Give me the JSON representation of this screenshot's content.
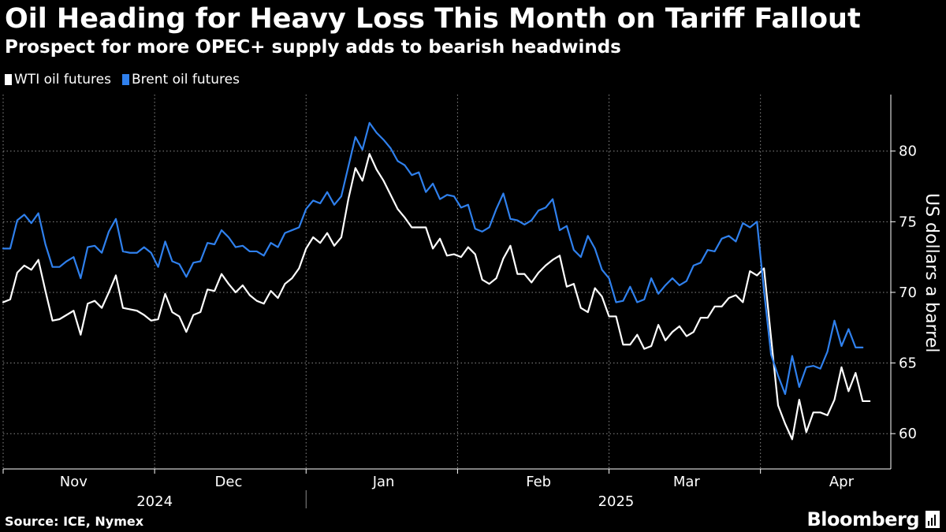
{
  "colors": {
    "background": "#000000",
    "wti": "#ffffff",
    "brent": "#2f80ed",
    "grid": "#8a8a8a"
  },
  "brand": {
    "name": "Bloomberg",
    "icon": "bloomberg-chart-icon"
  },
  "source": "Source: ICE, Nymex",
  "chart_data": {
    "type": "line",
    "title": "Oil Heading for Heavy Loss This Month on Tariff Fallout",
    "subtitle": "Prospect for more OPEC+ supply adds to bearish headwinds",
    "ylabel": "US dollars a barrel",
    "xlabel": "",
    "ylim": [
      57.5,
      84
    ],
    "yticks": [
      60,
      65,
      70,
      75,
      80
    ],
    "xlim": [
      0,
      126
    ],
    "month_ticks": [
      {
        "label": "Nov",
        "x": 10
      },
      {
        "label": "Dec",
        "x": 32
      },
      {
        "label": "Jan",
        "x": 54
      },
      {
        "label": "Feb",
        "x": 76
      },
      {
        "label": "Mar",
        "x": 97
      },
      {
        "label": "Apr",
        "x": 119
      }
    ],
    "month_boundaries": [
      0,
      21.5,
      43,
      64.5,
      86,
      107.5
    ],
    "year_labels": [
      {
        "label": "2024",
        "x": 21.5
      },
      {
        "label": "2025",
        "x": 87
      }
    ],
    "year_divider": 43,
    "grid": true,
    "legend": "top-left",
    "series": [
      {
        "name": "WTI oil futures",
        "color": "#ffffff",
        "values": [
          69.3,
          69.5,
          71.4,
          71.9,
          71.6,
          72.3,
          70.1,
          68.0,
          68.1,
          68.4,
          68.7,
          67.0,
          69.2,
          69.4,
          68.9,
          70.0,
          71.2,
          68.9,
          68.8,
          68.7,
          68.4,
          68.0,
          68.1,
          69.9,
          68.6,
          68.3,
          67.2,
          68.4,
          68.6,
          70.2,
          70.1,
          71.3,
          70.6,
          70.0,
          70.5,
          69.8,
          69.4,
          69.2,
          70.1,
          69.6,
          70.6,
          71.0,
          71.7,
          73.1,
          73.9,
          73.5,
          74.2,
          73.3,
          73.9,
          76.6,
          78.8,
          77.9,
          79.8,
          78.7,
          77.9,
          76.9,
          75.9,
          75.3,
          74.6,
          74.6,
          74.6,
          73.1,
          73.8,
          72.6,
          72.7,
          72.5,
          73.2,
          72.7,
          70.9,
          70.6,
          71.0,
          72.4,
          73.3,
          71.3,
          71.3,
          70.7,
          71.4,
          71.9,
          72.3,
          72.6,
          70.4,
          70.6,
          68.9,
          68.6,
          70.3,
          69.7,
          68.3,
          68.3,
          66.3,
          66.3,
          67.0,
          66.0,
          66.2,
          67.7,
          66.6,
          67.2,
          67.6,
          66.9,
          67.2,
          68.2,
          68.2,
          69.0,
          69.0,
          69.6,
          69.8,
          69.3,
          71.5,
          71.2,
          71.7,
          66.8,
          62.0,
          60.7,
          59.6,
          62.4,
          60.1,
          61.5,
          61.5,
          61.3,
          62.4,
          64.7,
          63.0,
          64.3,
          62.3,
          62.3
        ]
      },
      {
        "name": "Brent oil futures",
        "color": "#2f80ed",
        "values": [
          73.1,
          73.1,
          75.1,
          75.5,
          74.9,
          75.6,
          73.4,
          71.8,
          71.8,
          72.2,
          72.5,
          71.0,
          73.2,
          73.3,
          72.8,
          74.3,
          75.2,
          72.9,
          72.8,
          72.8,
          73.2,
          72.8,
          71.8,
          73.6,
          72.2,
          72.0,
          71.1,
          72.1,
          72.2,
          73.5,
          73.4,
          74.4,
          73.9,
          73.2,
          73.3,
          72.9,
          72.9,
          72.6,
          73.5,
          73.2,
          74.2,
          74.4,
          74.6,
          75.9,
          76.5,
          76.3,
          77.1,
          76.2,
          76.8,
          78.9,
          81.0,
          80.1,
          82.0,
          81.3,
          80.8,
          80.2,
          79.3,
          79.0,
          78.3,
          78.5,
          77.1,
          77.7,
          76.6,
          76.9,
          76.8,
          76.0,
          76.2,
          74.5,
          74.3,
          74.6,
          75.9,
          77.0,
          75.2,
          75.1,
          74.8,
          75.1,
          75.8,
          76.0,
          76.6,
          74.4,
          74.7,
          73.0,
          72.5,
          74.0,
          73.1,
          71.6,
          71.0,
          69.3,
          69.4,
          70.4,
          69.3,
          69.5,
          71.0,
          69.9,
          70.5,
          71.0,
          70.5,
          70.8,
          71.9,
          72.1,
          73.0,
          72.9,
          73.8,
          74.0,
          73.6,
          74.9,
          74.6,
          75.0,
          70.1,
          65.6,
          64.1,
          62.8,
          65.5,
          63.3,
          64.7,
          64.8,
          64.6,
          65.8,
          68.0,
          66.2,
          67.4,
          66.1,
          66.1
        ]
      }
    ]
  }
}
